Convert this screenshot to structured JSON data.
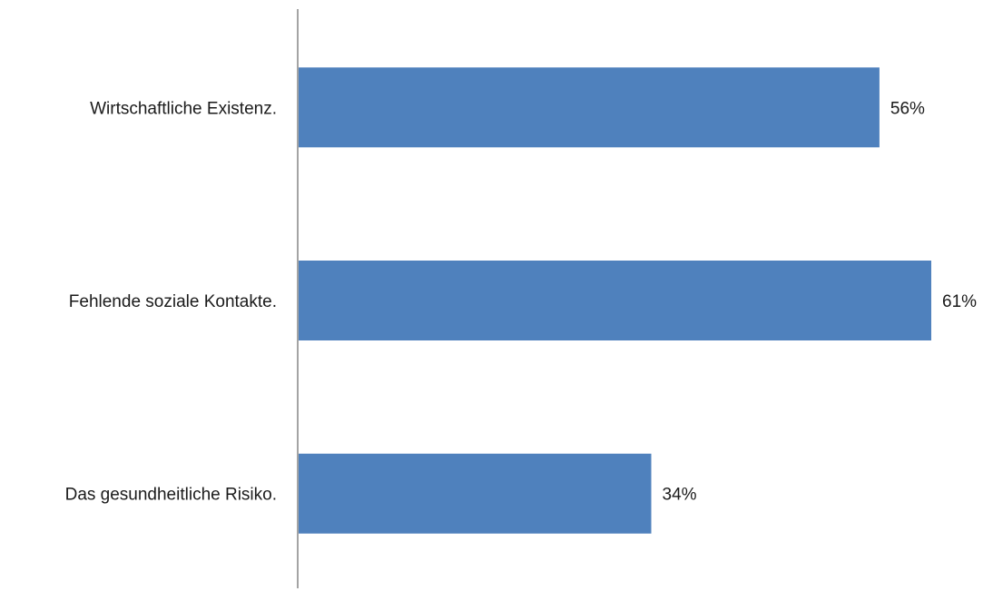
{
  "chart_data": {
    "type": "bar",
    "orientation": "horizontal",
    "title": "",
    "xlabel": "",
    "ylabel": "",
    "categories": [
      "Wirtschaftliche Existenz.",
      "Fehlende soziale Kontakte.",
      "Das gesundheitliche Risiko."
    ],
    "values": [
      56,
      61,
      34
    ],
    "value_labels": [
      "56%",
      "61%",
      "34%"
    ],
    "unit": "%",
    "xlim": [
      0,
      64
    ],
    "grid": false,
    "legend": "none",
    "colors": {
      "bar": "#4F81BD",
      "axis": "#868686",
      "text": "#1a1a1a"
    }
  }
}
